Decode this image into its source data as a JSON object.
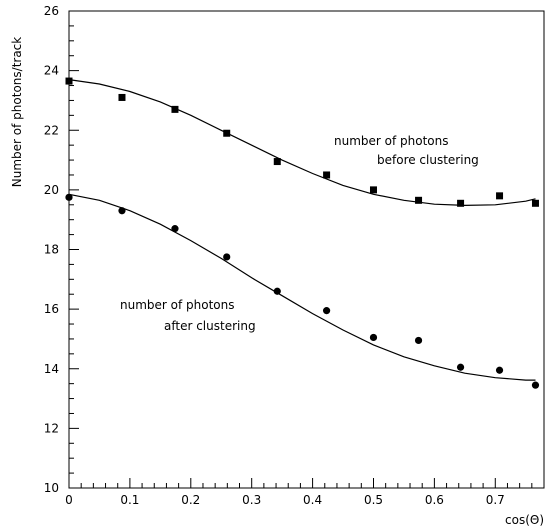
{
  "chart_data": {
    "type": "scatter",
    "title": "",
    "xlabel": "cos(Θ)",
    "ylabel": "Number of photons/track",
    "xlim": [
      0,
      0.78
    ],
    "ylim": [
      10,
      26
    ],
    "xticks": [
      "0",
      "0.1",
      "0.2",
      "0.3",
      "0.4",
      "0.5",
      "0.6",
      "0.7"
    ],
    "yticks": [
      "10",
      "12",
      "14",
      "16",
      "18",
      "20",
      "22",
      "24",
      "26"
    ],
    "grid": false,
    "legend": "none",
    "series": [
      {
        "marker": "square",
        "x": [
          0.0,
          0.087,
          0.174,
          0.259,
          0.342,
          0.423,
          0.5,
          0.574,
          0.643,
          0.707,
          0.766
        ],
        "y": [
          23.65,
          23.1,
          22.7,
          21.9,
          20.95,
          20.5,
          20.0,
          19.65,
          19.55,
          19.8,
          19.55
        ],
        "fit_x": [
          0.0,
          0.05,
          0.1,
          0.15,
          0.2,
          0.25,
          0.3,
          0.35,
          0.4,
          0.45,
          0.5,
          0.55,
          0.6,
          0.65,
          0.7,
          0.75,
          0.766
        ],
        "fit_y": [
          23.7,
          23.55,
          23.3,
          22.95,
          22.5,
          22.0,
          21.5,
          21.0,
          20.55,
          20.15,
          19.85,
          19.65,
          19.52,
          19.48,
          19.5,
          19.62,
          19.7
        ]
      },
      {
        "marker": "circle",
        "x": [
          0.0,
          0.087,
          0.174,
          0.259,
          0.342,
          0.423,
          0.5,
          0.574,
          0.643,
          0.707,
          0.766
        ],
        "y": [
          19.75,
          19.3,
          18.7,
          17.75,
          16.6,
          15.95,
          15.05,
          14.95,
          14.05,
          13.95,
          13.45
        ],
        "fit_x": [
          0.0,
          0.05,
          0.1,
          0.15,
          0.2,
          0.25,
          0.3,
          0.35,
          0.4,
          0.45,
          0.5,
          0.55,
          0.6,
          0.65,
          0.7,
          0.75,
          0.766
        ],
        "fit_y": [
          19.85,
          19.65,
          19.3,
          18.85,
          18.3,
          17.7,
          17.05,
          16.45,
          15.85,
          15.3,
          14.8,
          14.4,
          14.1,
          13.85,
          13.7,
          13.62,
          13.62
        ]
      }
    ],
    "annotations": [
      {
        "lines": [
          "number of photons",
          "before clustering"
        ]
      },
      {
        "lines": [
          "number of photons",
          "after clustering"
        ]
      }
    ]
  }
}
